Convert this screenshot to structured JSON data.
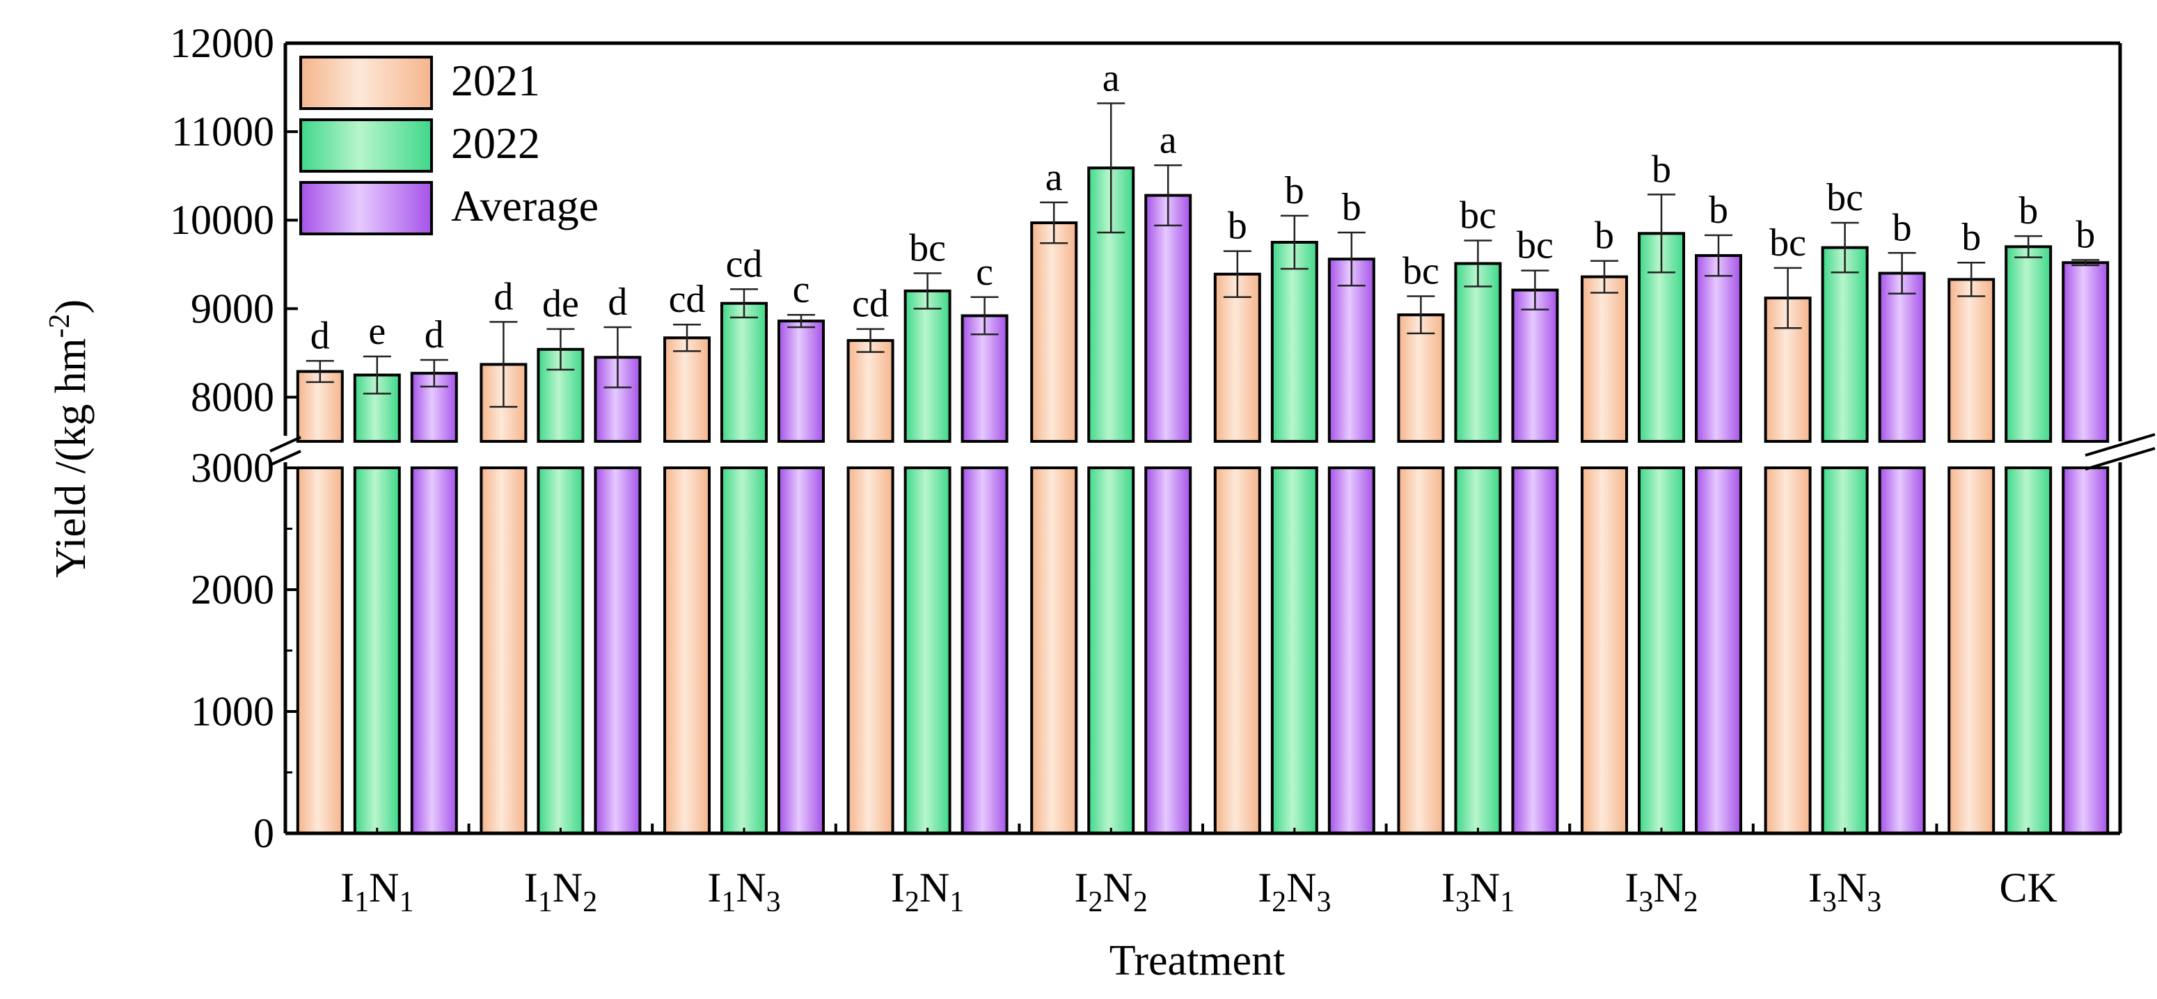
{
  "chart_data": {
    "type": "bar",
    "xlabel": "Treatment",
    "ylabel": "Yield /(kg hm",
    "ylabel_sup": "-2",
    "ylabel_close": ")",
    "axis_break": {
      "lower_max": 3000,
      "upper_min": 7500
    },
    "lower_ticks": [
      0,
      1000,
      2000,
      3000
    ],
    "upper_ticks": [
      8000,
      9000,
      10000,
      11000,
      12000
    ],
    "upper_ylim": [
      7500,
      12000
    ],
    "lower_ylim": [
      0,
      3000
    ],
    "categories": [
      {
        "base1": "I",
        "sub1": "1",
        "base2": "N",
        "sub2": "1"
      },
      {
        "base1": "I",
        "sub1": "1",
        "base2": "N",
        "sub2": "2"
      },
      {
        "base1": "I",
        "sub1": "1",
        "base2": "N",
        "sub2": "3"
      },
      {
        "base1": "I",
        "sub1": "2",
        "base2": "N",
        "sub2": "1"
      },
      {
        "base1": "I",
        "sub1": "2",
        "base2": "N",
        "sub2": "2"
      },
      {
        "base1": "I",
        "sub1": "2",
        "base2": "N",
        "sub2": "3"
      },
      {
        "base1": "I",
        "sub1": "3",
        "base2": "N",
        "sub2": "1"
      },
      {
        "base1": "I",
        "sub1": "3",
        "base2": "N",
        "sub2": "2"
      },
      {
        "base1": "I",
        "sub1": "3",
        "base2": "N",
        "sub2": "3"
      },
      {
        "base1": "CK",
        "sub1": "",
        "base2": "",
        "sub2": ""
      }
    ],
    "series": [
      {
        "name": "2021",
        "color_light": "#fde8d8",
        "color_dark": "#f5b58c",
        "values": [
          8290,
          8370,
          8670,
          8640,
          9970,
          9390,
          8930,
          9360,
          9120,
          9330
        ],
        "errors": [
          120,
          480,
          150,
          130,
          230,
          260,
          210,
          180,
          340,
          190
        ],
        "letters": [
          "d",
          "d",
          "cd",
          "cd",
          "a",
          "b",
          "bc",
          "b",
          "bc",
          "b"
        ]
      },
      {
        "name": "2022",
        "color_light": "#b8f5cc",
        "color_dark": "#3fd88a",
        "values": [
          8250,
          8540,
          9060,
          9200,
          10590,
          9750,
          9510,
          9850,
          9690,
          9700
        ],
        "errors": [
          210,
          230,
          160,
          200,
          730,
          300,
          260,
          440,
          280,
          120
        ],
        "letters": [
          "e",
          "de",
          "cd",
          "bc",
          "a",
          "b",
          "bc",
          "b",
          "bc",
          "b"
        ]
      },
      {
        "name": "Average",
        "color_light": "#e6c9ff",
        "color_dark": "#a653e8",
        "values": [
          8270,
          8450,
          8860,
          8920,
          10280,
          9560,
          9210,
          9600,
          9400,
          9520
        ],
        "errors": [
          150,
          340,
          70,
          210,
          340,
          300,
          220,
          230,
          230,
          30
        ],
        "letters": [
          "d",
          "d",
          "c",
          "c",
          "a",
          "b",
          "bc",
          "b",
          "b",
          "b"
        ]
      }
    ]
  }
}
